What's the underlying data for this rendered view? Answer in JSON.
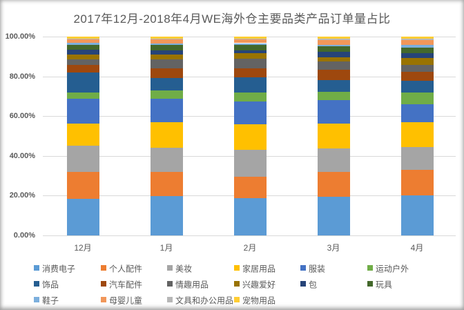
{
  "chart_data": {
    "type": "bar",
    "variant": "stacked-100-percent-column",
    "title": "2017年12月-2018年4月WE海外仓主要品类产品订单量占比",
    "categories": [
      "12月",
      "1月",
      "2月",
      "3月",
      "4月"
    ],
    "series": [
      {
        "name": "消费电子",
        "color": "#5B9BD5",
        "values": [
          18.4,
          19.7,
          18.8,
          19.6,
          20.2
        ]
      },
      {
        "name": "个人配件",
        "color": "#ED7D31",
        "values": [
          13.7,
          12.4,
          10.8,
          12.2,
          12.8
        ]
      },
      {
        "name": "美妆",
        "color": "#A5A5A5",
        "values": [
          13.0,
          12.0,
          13.4,
          11.8,
          11.6
        ]
      },
      {
        "name": "家居用品",
        "color": "#FFC000",
        "values": [
          11.0,
          12.8,
          13.0,
          12.5,
          12.2
        ]
      },
      {
        "name": "服装",
        "color": "#4472C4",
        "values": [
          12.8,
          12.0,
          11.4,
          11.8,
          9.3
        ]
      },
      {
        "name": "运动户外",
        "color": "#70AD47",
        "values": [
          3.1,
          3.9,
          4.4,
          4.4,
          5.8
        ]
      },
      {
        "name": "饰品",
        "color": "#255E91",
        "values": [
          9.8,
          6.2,
          7.7,
          5.8,
          5.8
        ]
      },
      {
        "name": "汽车配件",
        "color": "#9E480E",
        "values": [
          3.8,
          5.0,
          4.6,
          5.2,
          4.6
        ]
      },
      {
        "name": "情趣用品",
        "color": "#636363",
        "values": [
          3.1,
          4.5,
          4.9,
          4.1,
          3.5
        ]
      },
      {
        "name": "兴趣爱好",
        "color": "#997300",
        "values": [
          2.4,
          2.4,
          2.6,
          2.3,
          3.5
        ]
      },
      {
        "name": "包",
        "color": "#264478",
        "values": [
          2.3,
          2.1,
          1.5,
          2.5,
          2.3
        ]
      },
      {
        "name": "玩具",
        "color": "#43682B",
        "values": [
          2.6,
          2.8,
          2.6,
          2.8,
          2.9
        ]
      },
      {
        "name": "鞋子",
        "color": "#7CAFDD",
        "values": [
          0.8,
          0.7,
          1.0,
          1.0,
          1.4
        ]
      },
      {
        "name": "母婴儿童",
        "color": "#F1975A",
        "values": [
          1.7,
          2.0,
          1.8,
          2.2,
          2.4
        ]
      },
      {
        "name": "文具和办公用品",
        "color": "#B7B7B7",
        "values": [
          0.5,
          0.5,
          0.5,
          0.8,
          0.7
        ]
      },
      {
        "name": "宠物用品",
        "color": "#FFCD33",
        "values": [
          1.0,
          1.0,
          1.0,
          1.0,
          1.0
        ]
      }
    ],
    "ylim": [
      0,
      100
    ],
    "ytick_labels": [
      "0.00%",
      "20.00%",
      "40.00%",
      "60.00%",
      "80.00%",
      "100.00%"
    ],
    "grid": "horizontal",
    "legend_position": "bottom",
    "legend_rows": 3
  }
}
